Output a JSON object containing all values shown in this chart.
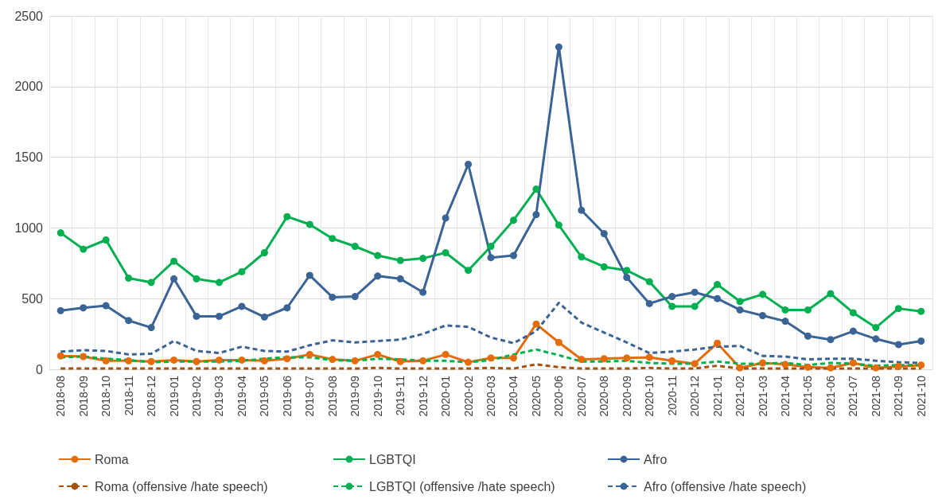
{
  "chart_data": {
    "type": "line",
    "categories": [
      "2018-08",
      "2018-09",
      "2018-10",
      "2018-11",
      "2018-12",
      "2019-01",
      "2019-02",
      "2019-03",
      "2019-04",
      "2019-05",
      "2019-06",
      "2019-07",
      "2019-08",
      "2019-09",
      "2019-10",
      "2019-11",
      "2019-12",
      "2020-01",
      "2020-02",
      "2020-03",
      "2020-04",
      "2020-05",
      "2020-06",
      "2020-07",
      "2020-08",
      "2020-09",
      "2020-10",
      "2020-11",
      "2020-12",
      "2021-01",
      "2021-02",
      "2021-03",
      "2021-04",
      "2021-05",
      "2021-06",
      "2021-07",
      "2021-08",
      "2021-09",
      "2021-10"
    ],
    "ylim": [
      0,
      2500
    ],
    "yticks": [
      0,
      500,
      {
        "value": 1000,
        "label": "1000"
      },
      {
        "value": 1500,
        "label": "1500"
      },
      {
        "value": 2000,
        "label": "2000"
      },
      {
        "value": 2500,
        "label": "2500"
      }
    ],
    "grid": true,
    "legend": "bottom",
    "series": [
      {
        "name": "Roma",
        "color": "#e46c0a",
        "marker": "circle",
        "line_style": "solid",
        "values": [
          95,
          90,
          60,
          60,
          55,
          65,
          55,
          65,
          65,
          60,
          75,
          105,
          70,
          60,
          105,
          55,
          60,
          105,
          50,
          80,
          80,
          320,
          190,
          70,
          75,
          80,
          85,
          60,
          40,
          185,
          10,
          45,
          35,
          15,
          10,
          45,
          10,
          20,
          30
        ]
      },
      {
        "name": "LGBTQI",
        "color": "#00b050",
        "marker": "circle",
        "line_style": "solid",
        "values": [
          965,
          850,
          915,
          645,
          615,
          765,
          640,
          615,
          690,
          825,
          1080,
          1025,
          925,
          870,
          805,
          770,
          785,
          825,
          700,
          870,
          1055,
          1275,
          1020,
          795,
          725,
          700,
          620,
          445,
          445,
          600,
          480,
          530,
          420,
          420,
          535,
          400,
          295,
          430,
          410
        ]
      },
      {
        "name": "Afro",
        "color": "#3b6496",
        "marker": "circle",
        "line_style": "solid",
        "values": [
          415,
          435,
          450,
          345,
          295,
          640,
          375,
          375,
          445,
          370,
          435,
          665,
          510,
          515,
          660,
          640,
          545,
          1070,
          1450,
          790,
          805,
          1095,
          2280,
          1125,
          960,
          650,
          465,
          515,
          545,
          500,
          420,
          380,
          340,
          235,
          210,
          270,
          215,
          175,
          200
        ]
      },
      {
        "name": "Roma (offensive /hate speech)",
        "color": "#a5510e",
        "marker": "none",
        "line_style": "dashed",
        "values": [
          5,
          5,
          5,
          5,
          5,
          5,
          5,
          5,
          5,
          5,
          5,
          5,
          5,
          5,
          10,
          5,
          5,
          5,
          5,
          10,
          5,
          35,
          15,
          5,
          5,
          5,
          10,
          5,
          5,
          25,
          5,
          5,
          5,
          5,
          5,
          5,
          5,
          5,
          5
        ]
      },
      {
        "name": "LGBTQI (offensive /hate speech)",
        "color": "#00b050",
        "marker": "none",
        "line_style": "dashed",
        "values": [
          85,
          90,
          75,
          65,
          50,
          55,
          55,
          55,
          60,
          75,
          85,
          85,
          65,
          60,
          75,
          70,
          60,
          60,
          50,
          65,
          105,
          140,
          100,
          55,
          55,
          60,
          45,
          40,
          40,
          55,
          40,
          40,
          45,
          30,
          45,
          40,
          25,
          30,
          30
        ]
      },
      {
        "name": "Afro (offensive /hate speech)",
        "color": "#3b6496",
        "marker": "none",
        "line_style": "dashed",
        "values": [
          125,
          135,
          130,
          105,
          110,
          200,
          130,
          115,
          160,
          130,
          125,
          170,
          205,
          190,
          200,
          210,
          250,
          310,
          300,
          225,
          185,
          270,
          470,
          330,
          260,
          190,
          115,
          125,
          140,
          160,
          165,
          95,
          90,
          70,
          75,
          75,
          60,
          50,
          45
        ]
      }
    ]
  }
}
